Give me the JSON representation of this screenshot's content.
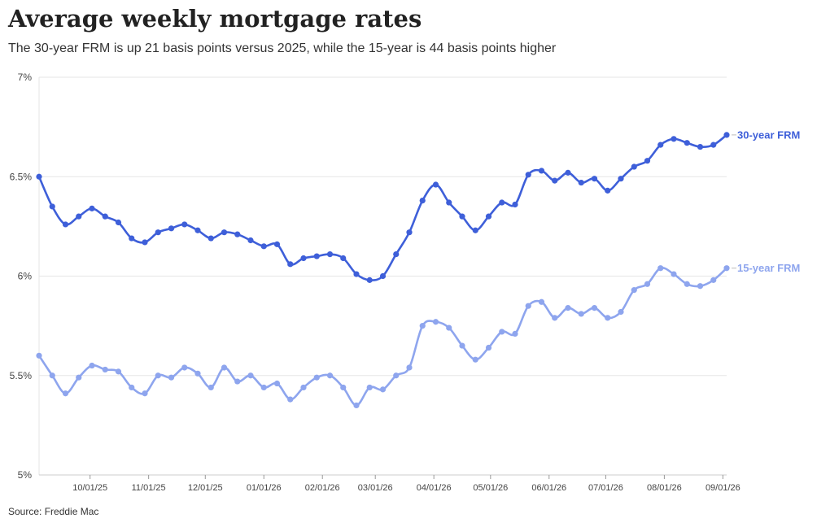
{
  "header": {
    "title": "Average weekly mortgage rates",
    "subtitle": "The 30-year FRM is up 21 basis points versus 2025, while the 15-year is 44 basis points higher"
  },
  "footer": {
    "source": "Source: Freddie Mac"
  },
  "chart_data": {
    "type": "line",
    "title": "Average weekly mortgage rates",
    "subtitle": "The 30-year FRM is up 21 basis points versus 2025, while the 15-year is 44 basis points higher",
    "xlabel": "",
    "ylabel": "",
    "ylim": [
      5,
      7
    ],
    "yticks": [
      5,
      5.5,
      6,
      6.5,
      7
    ],
    "ytick_labels": [
      "5%",
      "5.5%",
      "6%",
      "6.5%",
      "7%"
    ],
    "xticks": [
      "10/01/25",
      "11/01/25",
      "12/01/25",
      "01/01/26",
      "02/01/26",
      "03/01/26",
      "04/01/26",
      "05/01/26",
      "06/01/26",
      "07/01/26",
      "08/01/26",
      "09/01/26"
    ],
    "x": [
      "2025-09-04",
      "2025-09-11",
      "2025-09-18",
      "2025-09-25",
      "2025-10-02",
      "2025-10-09",
      "2025-10-16",
      "2025-10-23",
      "2025-10-30",
      "2025-11-06",
      "2025-11-13",
      "2025-11-20",
      "2025-11-27",
      "2025-12-04",
      "2025-12-11",
      "2025-12-18",
      "2025-12-25",
      "2026-01-01",
      "2026-01-08",
      "2026-01-15",
      "2026-01-22",
      "2026-01-29",
      "2026-02-05",
      "2026-02-12",
      "2026-02-19",
      "2026-02-26",
      "2026-03-05",
      "2026-03-12",
      "2026-03-19",
      "2026-03-26",
      "2026-04-02",
      "2026-04-09",
      "2026-04-16",
      "2026-04-23",
      "2026-04-30",
      "2026-05-07",
      "2026-05-14",
      "2026-05-21",
      "2026-05-28",
      "2026-06-04",
      "2026-06-11",
      "2026-06-18",
      "2026-06-25",
      "2026-07-02",
      "2026-07-09",
      "2026-07-16",
      "2026-07-23",
      "2026-07-30",
      "2026-08-06",
      "2026-08-13",
      "2026-08-20",
      "2026-08-27",
      "2026-09-03"
    ],
    "grid": true,
    "legend": "direct labels at line ends",
    "series": [
      {
        "name": "30-year FRM",
        "color": "#3e5fd9",
        "values": [
          6.5,
          6.35,
          6.26,
          6.3,
          6.34,
          6.3,
          6.27,
          6.19,
          6.17,
          6.22,
          6.24,
          6.26,
          6.23,
          6.19,
          6.22,
          6.21,
          6.18,
          6.15,
          6.16,
          6.06,
          6.09,
          6.1,
          6.11,
          6.09,
          6.01,
          5.98,
          6.0,
          6.11,
          6.22,
          6.38,
          6.46,
          6.37,
          6.3,
          6.23,
          6.3,
          6.37,
          6.36,
          6.51,
          6.53,
          6.48,
          6.52,
          6.47,
          6.49,
          6.43,
          6.49,
          6.55,
          6.58,
          6.66,
          6.69,
          6.67,
          6.65,
          6.66,
          6.71
        ]
      },
      {
        "name": "15-year FRM",
        "color": "#8ea5ee",
        "values": [
          5.6,
          5.5,
          5.41,
          5.49,
          5.55,
          5.53,
          5.52,
          5.44,
          5.41,
          5.5,
          5.49,
          5.54,
          5.51,
          5.44,
          5.54,
          5.47,
          5.5,
          5.44,
          5.46,
          5.38,
          5.44,
          5.49,
          5.5,
          5.44,
          5.35,
          5.44,
          5.43,
          5.5,
          5.54,
          5.75,
          5.77,
          5.74,
          5.65,
          5.58,
          5.64,
          5.72,
          5.71,
          5.85,
          5.87,
          5.79,
          5.84,
          5.81,
          5.84,
          5.79,
          5.82,
          5.93,
          5.96,
          6.04,
          6.01,
          5.96,
          5.95,
          5.98,
          6.04
        ]
      }
    ]
  }
}
